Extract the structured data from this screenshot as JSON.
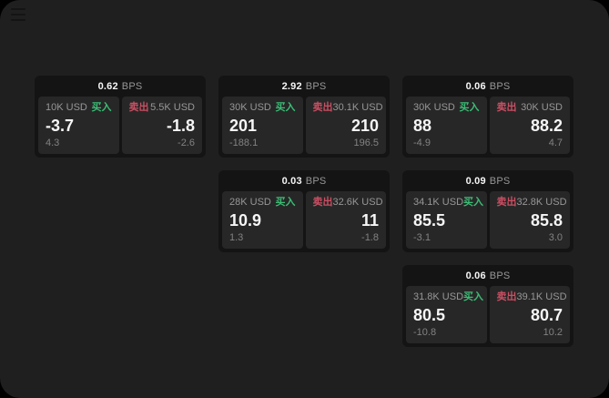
{
  "colors": {
    "surface": "#1f1f1f",
    "card_bg": "#141414",
    "panel_bg": "#272727",
    "label": "#979797",
    "muted": "#828282",
    "value": "#f6f6f6",
    "buy": "#3bbd75",
    "sell": "#c94f63"
  },
  "icons": {
    "menu": "menu-icon"
  },
  "labels": {
    "bps": "BPS",
    "buy": "买入",
    "sell": "卖出"
  },
  "cards": [
    {
      "bps": "0.62",
      "buy": {
        "amount": "10K USD",
        "value": "-3.7",
        "delta": "4.3"
      },
      "sell": {
        "amount": "5.5K USD",
        "value": "-1.8",
        "delta": "-2.6"
      }
    },
    {
      "bps": "2.92",
      "buy": {
        "amount": "30K USD",
        "value": "201",
        "delta": "-188.1"
      },
      "sell": {
        "amount": "30.1K USD",
        "value": "210",
        "delta": "196.5"
      }
    },
    {
      "bps": "0.06",
      "buy": {
        "amount": "30K USD",
        "value": "88",
        "delta": "-4.9"
      },
      "sell": {
        "amount": "30K USD",
        "value": "88.2",
        "delta": "4.7"
      }
    },
    {
      "bps": "0.03",
      "buy": {
        "amount": "28K USD",
        "value": "10.9",
        "delta": "1.3"
      },
      "sell": {
        "amount": "32.6K USD",
        "value": "11",
        "delta": "-1.8"
      }
    },
    {
      "bps": "0.09",
      "buy": {
        "amount": "34.1K USD",
        "value": "85.5",
        "delta": "-3.1"
      },
      "sell": {
        "amount": "32.8K USD",
        "value": "85.8",
        "delta": "3.0"
      }
    },
    {
      "bps": "0.06",
      "buy": {
        "amount": "31.8K USD",
        "value": "80.5",
        "delta": "-10.8"
      },
      "sell": {
        "amount": "39.1K USD",
        "value": "80.7",
        "delta": "10.2"
      }
    }
  ]
}
